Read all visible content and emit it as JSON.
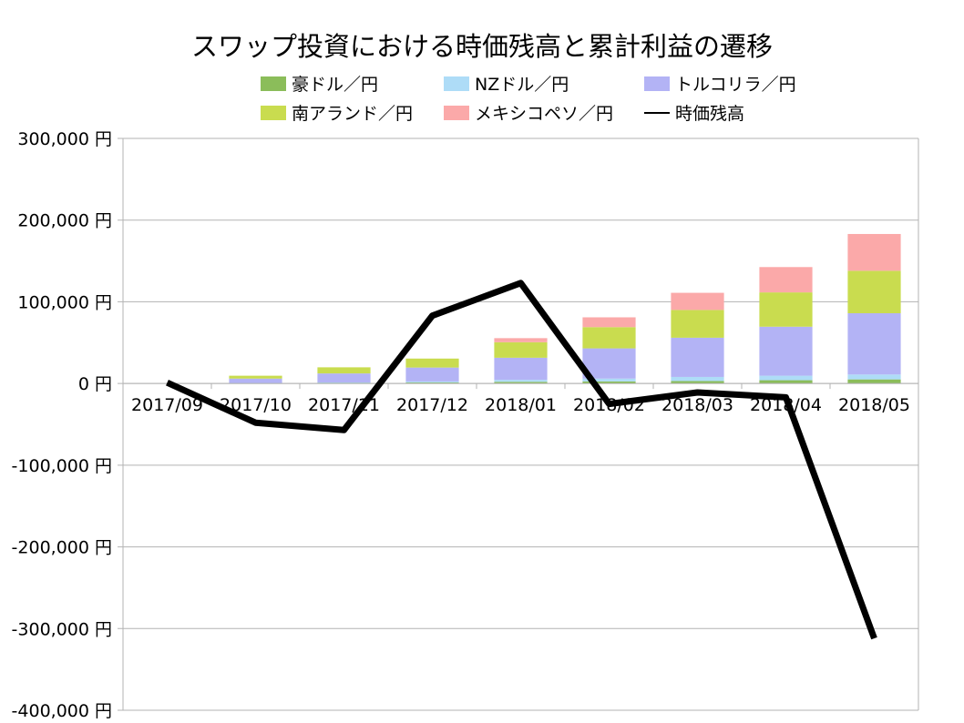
{
  "chart_data": {
    "type": "bar",
    "title": "スワップ投資における時価残高と累計利益の遷移",
    "categories": [
      "2017/09",
      "2017/10",
      "2017/11",
      "2017/12",
      "2018/01",
      "2018/02",
      "2018/03",
      "2018/04",
      "2018/05"
    ],
    "ylim": [
      -400000,
      300000
    ],
    "yticks": [
      300000,
      200000,
      100000,
      0,
      -100000,
      -200000,
      -300000,
      -400000
    ],
    "ytick_labels": [
      "300,000 円",
      "200,000 円",
      "100,000 円",
      "0 円",
      "-100,000 円",
      "-200,000 円",
      "-300,000 円",
      "-400,000 円"
    ],
    "stacked": true,
    "grid": true,
    "legend_position": "top",
    "series": [
      {
        "name": "豪ドル／円",
        "type": "bar",
        "color": "#8bbd5a",
        "values": [
          0,
          300,
          700,
          1200,
          2000,
          2500,
          3000,
          4000,
          5000
        ]
      },
      {
        "name": "NZドル／円",
        "type": "bar",
        "color": "#aedcf7",
        "values": [
          0,
          300,
          600,
          1300,
          2500,
          3500,
          5000,
          5500,
          6000
        ]
      },
      {
        "name": "トルコリラ／円",
        "type": "bar",
        "color": "#b3b3f5",
        "values": [
          0,
          5400,
          11000,
          17000,
          27000,
          37000,
          48000,
          60000,
          75000
        ]
      },
      {
        "name": "南アランド／円",
        "type": "bar",
        "color": "#c9dc4f",
        "values": [
          0,
          3500,
          7500,
          11000,
          19000,
          26000,
          34000,
          42000,
          52000
        ]
      },
      {
        "name": "メキシコペソ／円",
        "type": "bar",
        "color": "#fba9a9",
        "values": [
          0,
          0,
          0,
          0,
          5000,
          12000,
          21000,
          31000,
          45000
        ]
      },
      {
        "name": "時価残高",
        "type": "line",
        "color": "#000000",
        "values": [
          1000,
          -48000,
          -57000,
          83000,
          123000,
          -25000,
          -11000,
          -17000,
          -312000
        ]
      }
    ]
  }
}
